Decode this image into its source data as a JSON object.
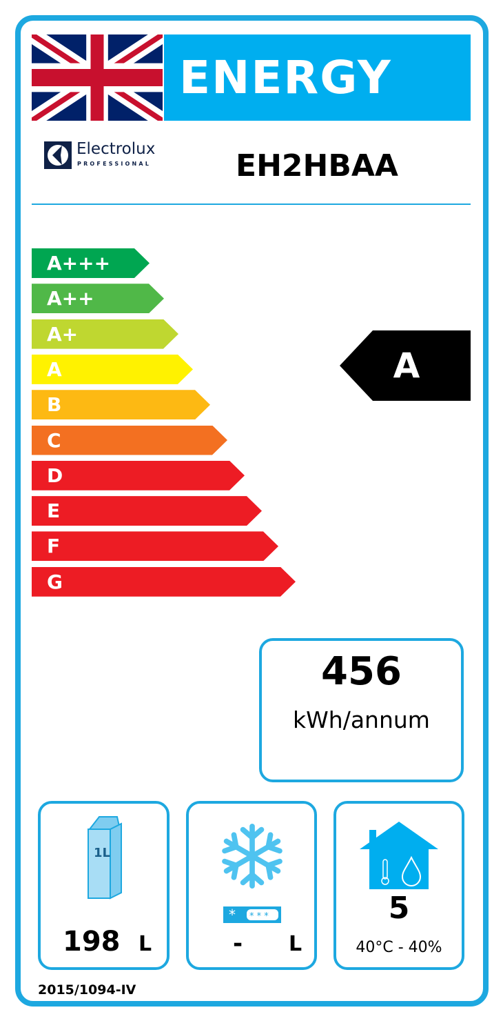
{
  "header": {
    "title": "ENERGY",
    "flag": "union-jack-flag-icon"
  },
  "brand": {
    "name": "Electrolux",
    "subtitle": "PROFESSIONAL"
  },
  "model": "EH2HBAA",
  "scale": [
    {
      "label": "A+++",
      "color": "#00A651"
    },
    {
      "label": "A++",
      "color": "#50B848"
    },
    {
      "label": "A+",
      "color": "#BFD730"
    },
    {
      "label": "A",
      "color": "#FFF200"
    },
    {
      "label": "B",
      "color": "#FDB913"
    },
    {
      "label": "C",
      "color": "#F37021"
    },
    {
      "label": "D",
      "color": "#ED1C24"
    },
    {
      "label": "E",
      "color": "#ED1C24"
    },
    {
      "label": "F",
      "color": "#ED1C24"
    },
    {
      "label": "G",
      "color": "#ED1C24"
    }
  ],
  "rating": "A",
  "consumption": {
    "value": "456",
    "unit": "kWh/annum"
  },
  "fresh_volume": {
    "icon": "milk-carton-icon",
    "carton_label": "1L",
    "value": "198",
    "unit": "L"
  },
  "frozen_volume": {
    "icon": "snowflake-icon",
    "value": "-",
    "unit": "L"
  },
  "climate": {
    "icon": "house-climate-icon",
    "class": "5",
    "conditions": "40°C - 40%"
  },
  "regulation": "2015/1094-IV",
  "accent_color": "#00AEEF"
}
